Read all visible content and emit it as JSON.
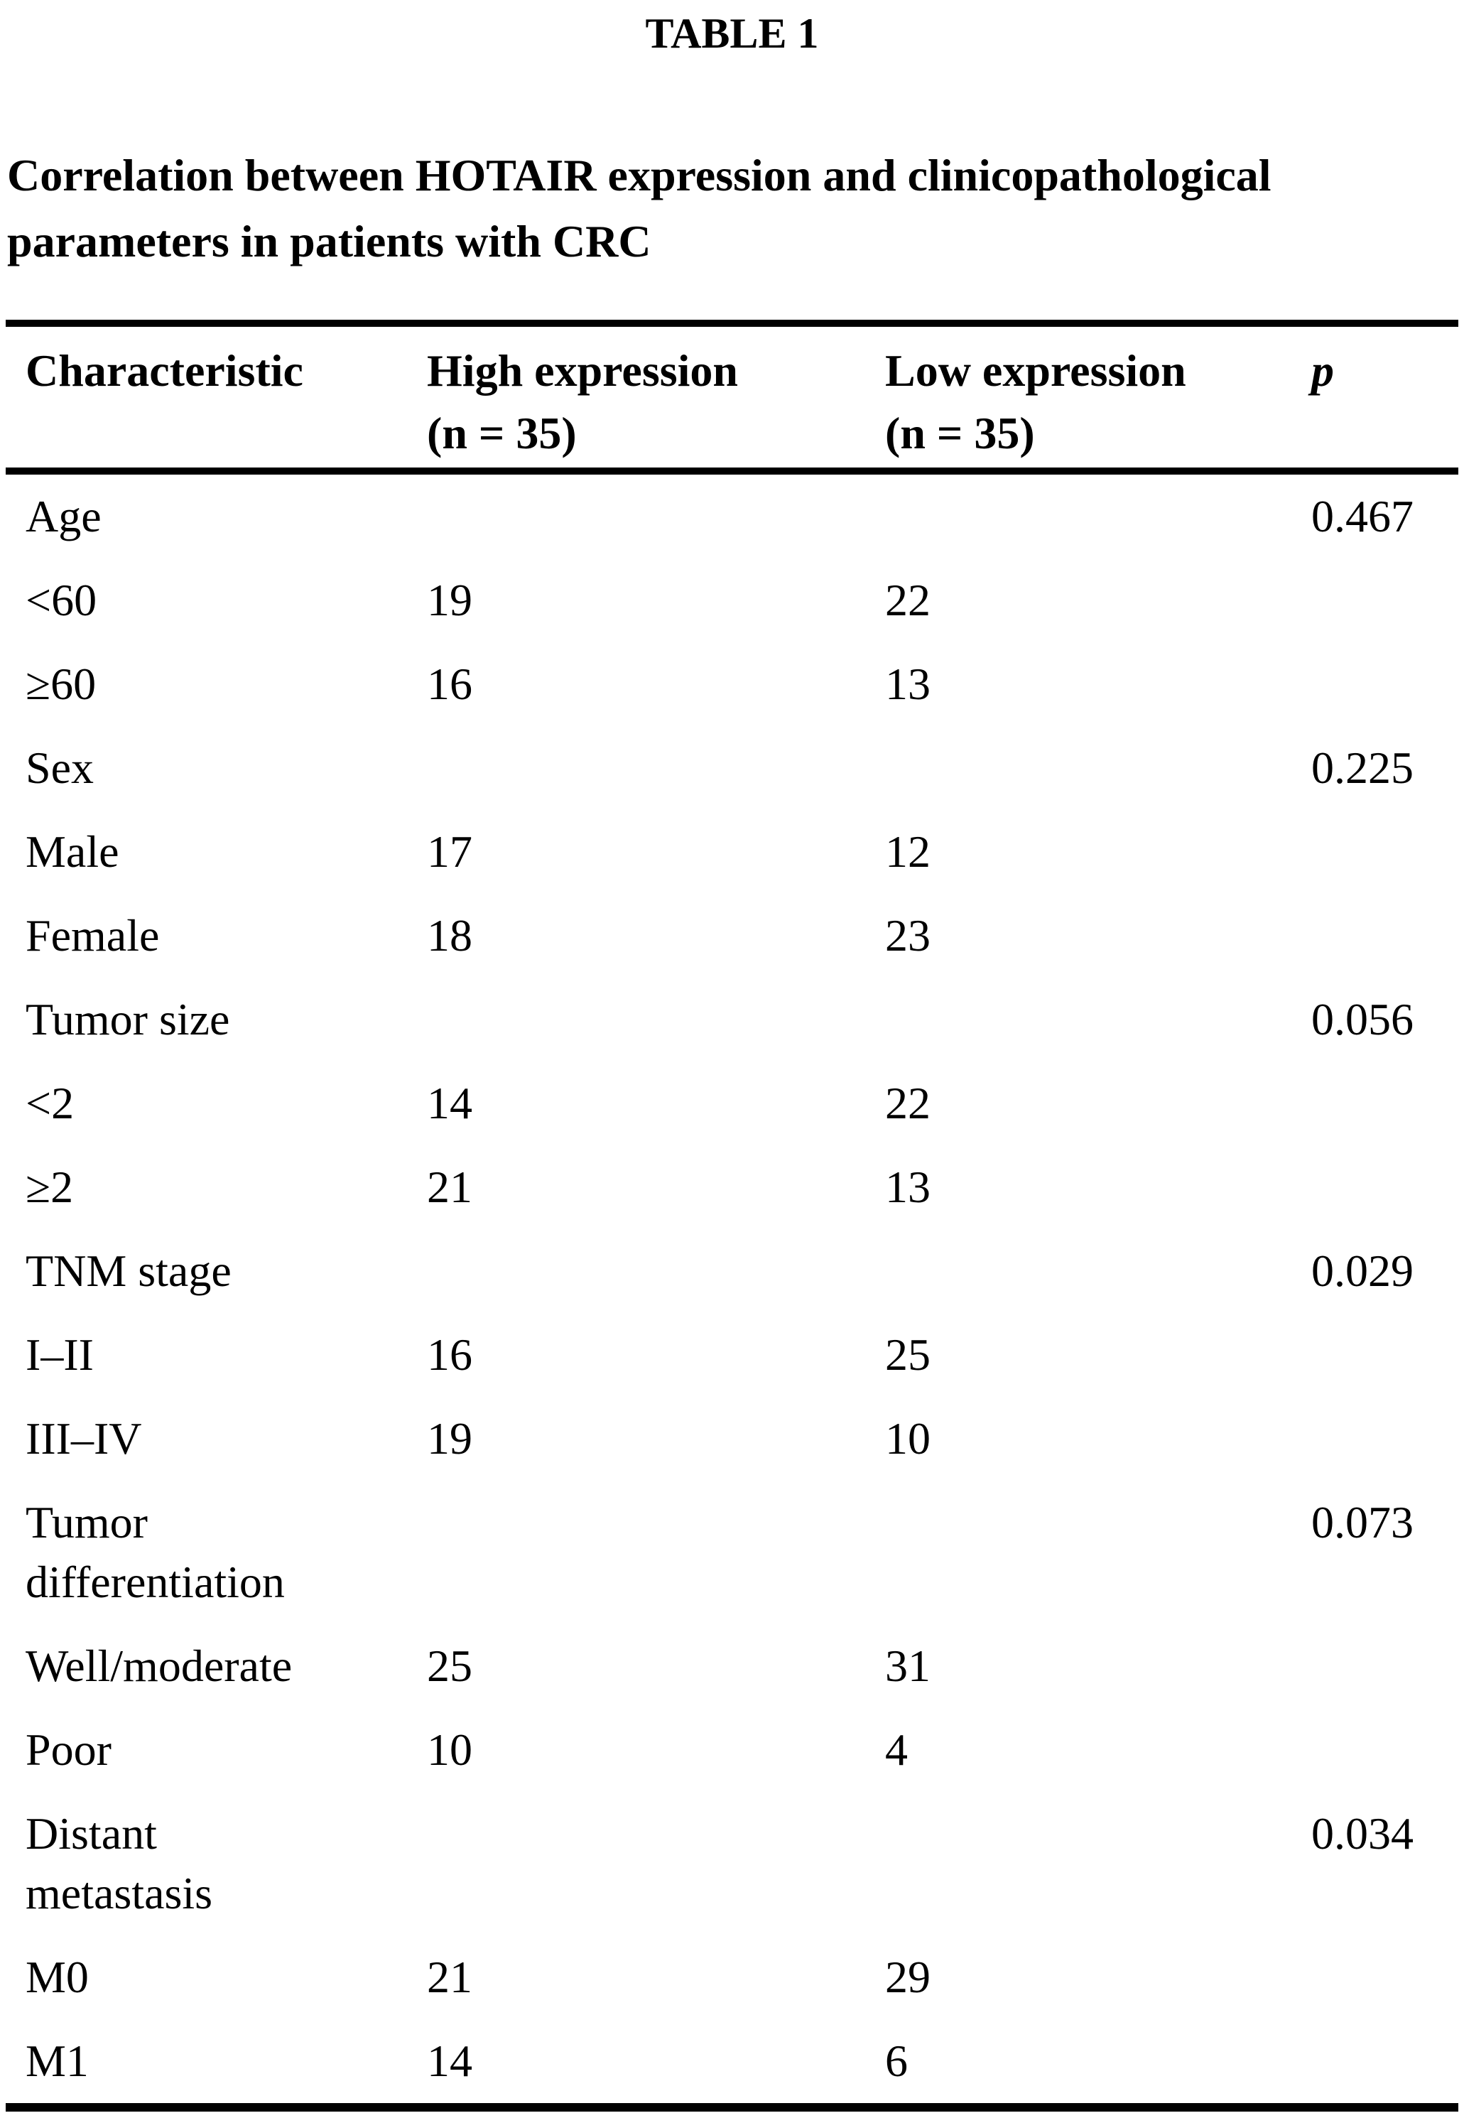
{
  "title": "TABLE 1",
  "caption": {
    "line1": "Correlation between HOTAIR expression and clinicopathological",
    "line2": "parameters in patients with CRC"
  },
  "colors": {
    "text": "#000000",
    "background": "#ffffff",
    "rule": "#000000"
  },
  "table": {
    "headers": {
      "characteristic": "Characteristic",
      "high_expression": "High expression",
      "high_expression_n": "(n = 35)",
      "low_expression": "Low expression",
      "low_expression_n": "(n = 35)",
      "p": "p"
    },
    "rows": [
      {
        "label": "Age",
        "high": "",
        "low": "",
        "p": "0.467"
      },
      {
        "label": "<60",
        "high": "19",
        "low": "22",
        "p": ""
      },
      {
        "label": "≥60",
        "high": "16",
        "low": "13",
        "p": ""
      },
      {
        "label": "Sex",
        "high": "",
        "low": "",
        "p": "0.225"
      },
      {
        "label": "Male",
        "high": "17",
        "low": "12",
        "p": ""
      },
      {
        "label": "Female",
        "high": "18",
        "low": "23",
        "p": ""
      },
      {
        "label": "Tumor size",
        "high": "",
        "low": "",
        "p": "0.056"
      },
      {
        "label": "<2",
        "high": "14",
        "low": "22",
        "p": ""
      },
      {
        "label": "≥2",
        "high": "21",
        "low": "13",
        "p": ""
      },
      {
        "label": "TNM stage",
        "high": "",
        "low": "",
        "p": "0.029"
      },
      {
        "label": "I–II",
        "high": "16",
        "low": "25",
        "p": ""
      },
      {
        "label": "III–IV",
        "high": "19",
        "low": "10",
        "p": ""
      },
      {
        "label": "Tumor\ndifferentiation",
        "high": "",
        "low": "",
        "p": "0.073"
      },
      {
        "label": "Well/moderate",
        "high": "25",
        "low": "31",
        "p": ""
      },
      {
        "label": "Poor",
        "high": "10",
        "low": "4",
        "p": ""
      },
      {
        "label": "Distant\nmetastasis",
        "high": "",
        "low": "",
        "p": "0.034"
      },
      {
        "label": "M0",
        "high": "21",
        "low": "29",
        "p": ""
      },
      {
        "label": "M1",
        "high": "14",
        "low": "6",
        "p": ""
      }
    ]
  }
}
